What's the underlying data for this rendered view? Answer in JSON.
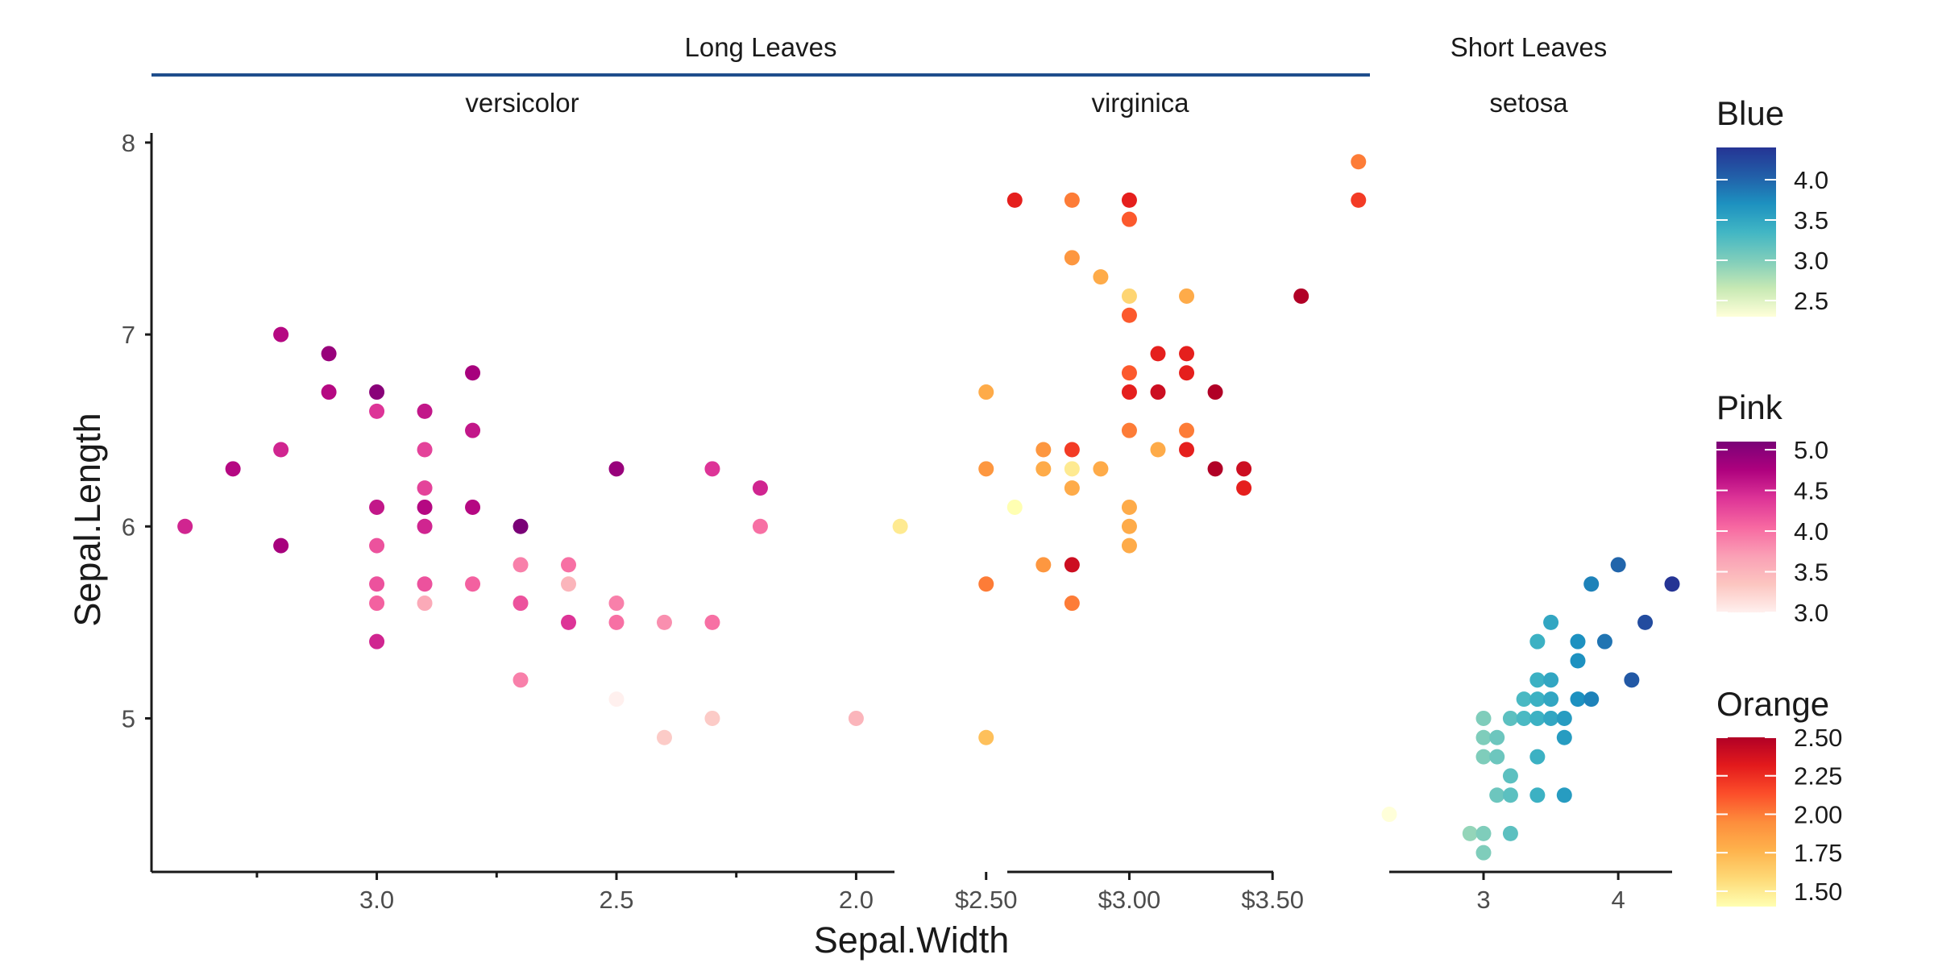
{
  "chart_data": {
    "type": "scatter",
    "xlabel": "Sepal.Width",
    "ylabel": "Sepal.Length",
    "ylim": [
      4.2,
      8.05
    ],
    "y_ticks": [
      "5",
      "6",
      "7",
      "8"
    ],
    "groups": [
      {
        "label": "Long Leaves",
        "rule_color": "#1f4e8c"
      },
      {
        "label": "Short Leaves"
      }
    ],
    "panels": [
      {
        "name": "versicolor",
        "xlim": [
          3.47,
          1.92
        ],
        "x_ticks": [
          {
            "v": 3.0,
            "label": "3.0"
          },
          {
            "v": 2.5,
            "label": "2.5"
          },
          {
            "v": 2.0,
            "label": "2.0"
          }
        ],
        "x_minor_ticks": [
          3.25,
          2.75,
          2.25
        ],
        "color_scale": "Pink",
        "points": [
          {
            "x": 3.4,
            "y": 6.0,
            "c": 4.5
          },
          {
            "x": 3.3,
            "y": 6.3,
            "c": 4.7
          },
          {
            "x": 3.2,
            "y": 7.0,
            "c": 4.7
          },
          {
            "x": 3.2,
            "y": 6.4,
            "c": 4.5
          },
          {
            "x": 3.2,
            "y": 5.9,
            "c": 4.8
          },
          {
            "x": 3.1,
            "y": 6.9,
            "c": 4.9
          },
          {
            "x": 3.1,
            "y": 6.7,
            "c": 4.7
          },
          {
            "x": 3.0,
            "y": 6.7,
            "c": 5.0
          },
          {
            "x": 3.0,
            "y": 6.6,
            "c": 4.4
          },
          {
            "x": 3.0,
            "y": 6.1,
            "c": 4.6
          },
          {
            "x": 3.0,
            "y": 5.9,
            "c": 4.2
          },
          {
            "x": 3.0,
            "y": 5.7,
            "c": 4.2
          },
          {
            "x": 3.0,
            "y": 5.6,
            "c": 4.1
          },
          {
            "x": 3.0,
            "y": 5.4,
            "c": 4.5
          },
          {
            "x": 2.9,
            "y": 6.6,
            "c": 4.6
          },
          {
            "x": 2.9,
            "y": 6.4,
            "c": 4.3
          },
          {
            "x": 2.9,
            "y": 6.2,
            "c": 4.3
          },
          {
            "x": 2.9,
            "y": 6.1,
            "c": 4.7
          },
          {
            "x": 2.9,
            "y": 6.0,
            "c": 4.5
          },
          {
            "x": 2.9,
            "y": 5.7,
            "c": 4.2
          },
          {
            "x": 2.9,
            "y": 5.6,
            "c": 3.6
          },
          {
            "x": 2.8,
            "y": 6.8,
            "c": 4.8
          },
          {
            "x": 2.8,
            "y": 6.5,
            "c": 4.6
          },
          {
            "x": 2.8,
            "y": 6.1,
            "c": 4.7
          },
          {
            "x": 2.8,
            "y": 5.7,
            "c": 4.1
          },
          {
            "x": 2.7,
            "y": 6.0,
            "c": 5.1
          },
          {
            "x": 2.7,
            "y": 5.8,
            "c": 3.9
          },
          {
            "x": 2.7,
            "y": 5.6,
            "c": 4.2
          },
          {
            "x": 2.7,
            "y": 5.2,
            "c": 3.9
          },
          {
            "x": 2.6,
            "y": 5.8,
            "c": 4.0
          },
          {
            "x": 2.6,
            "y": 5.7,
            "c": 3.5
          },
          {
            "x": 2.6,
            "y": 5.5,
            "c": 4.4
          },
          {
            "x": 2.5,
            "y": 6.3,
            "c": 4.9
          },
          {
            "x": 2.5,
            "y": 5.6,
            "c": 3.9
          },
          {
            "x": 2.5,
            "y": 5.5,
            "c": 4.0
          },
          {
            "x": 2.5,
            "y": 5.1,
            "c": 3.0
          },
          {
            "x": 2.4,
            "y": 5.5,
            "c": 3.8
          },
          {
            "x": 2.4,
            "y": 4.9,
            "c": 3.3
          },
          {
            "x": 2.3,
            "y": 6.3,
            "c": 4.4
          },
          {
            "x": 2.3,
            "y": 5.5,
            "c": 4.0
          },
          {
            "x": 2.3,
            "y": 5.0,
            "c": 3.3
          },
          {
            "x": 2.2,
            "y": 6.2,
            "c": 4.5
          },
          {
            "x": 2.2,
            "y": 6.0,
            "c": 4.0
          },
          {
            "x": 2.0,
            "y": 5.0,
            "c": 3.5
          }
        ]
      },
      {
        "name": "virginica",
        "xlim": [
          2.18,
          3.84
        ],
        "x_ticks": [
          {
            "v": 2.5,
            "label": "$2.50"
          },
          {
            "v": 3.0,
            "label": "$3.00"
          },
          {
            "v": 3.5,
            "label": "$3.50"
          }
        ],
        "x_minor_ticks": [],
        "color_scale": "Orange",
        "points": [
          {
            "x": 2.2,
            "y": 6.0,
            "c": 1.5
          },
          {
            "x": 2.5,
            "y": 6.7,
            "c": 1.8
          },
          {
            "x": 2.5,
            "y": 6.3,
            "c": 1.9
          },
          {
            "x": 2.5,
            "y": 5.7,
            "c": 2.0
          },
          {
            "x": 2.5,
            "y": 4.9,
            "c": 1.7
          },
          {
            "x": 2.6,
            "y": 7.7,
            "c": 2.3
          },
          {
            "x": 2.6,
            "y": 6.1,
            "c": 1.4
          },
          {
            "x": 2.7,
            "y": 6.4,
            "c": 1.9
          },
          {
            "x": 2.7,
            "y": 6.3,
            "c": 1.8
          },
          {
            "x": 2.7,
            "y": 5.8,
            "c": 1.9
          },
          {
            "x": 2.8,
            "y": 7.7,
            "c": 2.0
          },
          {
            "x": 2.8,
            "y": 7.4,
            "c": 1.9
          },
          {
            "x": 2.8,
            "y": 6.4,
            "c": 2.2
          },
          {
            "x": 2.8,
            "y": 6.3,
            "c": 1.5
          },
          {
            "x": 2.8,
            "y": 6.2,
            "c": 1.8
          },
          {
            "x": 2.8,
            "y": 5.8,
            "c": 2.4
          },
          {
            "x": 2.8,
            "y": 5.6,
            "c": 2.0
          },
          {
            "x": 2.9,
            "y": 7.3,
            "c": 1.8
          },
          {
            "x": 2.9,
            "y": 6.3,
            "c": 1.8
          },
          {
            "x": 3.0,
            "y": 7.7,
            "c": 2.3
          },
          {
            "x": 3.0,
            "y": 7.6,
            "c": 2.1
          },
          {
            "x": 3.0,
            "y": 7.2,
            "c": 1.6
          },
          {
            "x": 3.0,
            "y": 7.1,
            "c": 2.1
          },
          {
            "x": 3.0,
            "y": 6.8,
            "c": 2.1
          },
          {
            "x": 3.0,
            "y": 6.7,
            "c": 2.3
          },
          {
            "x": 3.0,
            "y": 6.5,
            "c": 2.0
          },
          {
            "x": 3.0,
            "y": 6.1,
            "c": 1.8
          },
          {
            "x": 3.0,
            "y": 6.0,
            "c": 1.8
          },
          {
            "x": 3.0,
            "y": 5.9,
            "c": 1.8
          },
          {
            "x": 3.1,
            "y": 6.9,
            "c": 2.3
          },
          {
            "x": 3.1,
            "y": 6.7,
            "c": 2.4
          },
          {
            "x": 3.1,
            "y": 6.4,
            "c": 1.8
          },
          {
            "x": 3.2,
            "y": 7.2,
            "c": 1.8
          },
          {
            "x": 3.2,
            "y": 6.9,
            "c": 2.3
          },
          {
            "x": 3.2,
            "y": 6.8,
            "c": 2.3
          },
          {
            "x": 3.2,
            "y": 6.5,
            "c": 2.0
          },
          {
            "x": 3.2,
            "y": 6.4,
            "c": 2.3
          },
          {
            "x": 3.3,
            "y": 6.7,
            "c": 2.5
          },
          {
            "x": 3.3,
            "y": 6.3,
            "c": 2.5
          },
          {
            "x": 3.4,
            "y": 6.3,
            "c": 2.4
          },
          {
            "x": 3.4,
            "y": 6.2,
            "c": 2.3
          },
          {
            "x": 3.6,
            "y": 7.2,
            "c": 2.5
          },
          {
            "x": 3.8,
            "y": 7.9,
            "c": 2.0
          },
          {
            "x": 3.8,
            "y": 7.7,
            "c": 2.2
          }
        ]
      },
      {
        "name": "setosa",
        "xlim": [
          2.3,
          4.4
        ],
        "x_ticks": [
          {
            "v": 3,
            "label": "3"
          },
          {
            "v": 4,
            "label": "4"
          }
        ],
        "x_minor_ticks": [],
        "color_scale": "Blue",
        "points": [
          {
            "x": 2.3,
            "y": 4.5,
            "c": 2.3
          },
          {
            "x": 2.9,
            "y": 4.4,
            "c": 2.9
          },
          {
            "x": 3.0,
            "y": 5.0,
            "c": 3.0
          },
          {
            "x": 3.0,
            "y": 4.9,
            "c": 3.0
          },
          {
            "x": 3.0,
            "y": 4.8,
            "c": 3.0
          },
          {
            "x": 3.0,
            "y": 4.4,
            "c": 3.0
          },
          {
            "x": 3.0,
            "y": 4.3,
            "c": 3.0
          },
          {
            "x": 3.1,
            "y": 4.9,
            "c": 3.1
          },
          {
            "x": 3.1,
            "y": 4.8,
            "c": 3.1
          },
          {
            "x": 3.1,
            "y": 4.6,
            "c": 3.1
          },
          {
            "x": 3.2,
            "y": 5.0,
            "c": 3.2
          },
          {
            "x": 3.2,
            "y": 4.7,
            "c": 3.2
          },
          {
            "x": 3.2,
            "y": 4.6,
            "c": 3.2
          },
          {
            "x": 3.2,
            "y": 4.4,
            "c": 3.2
          },
          {
            "x": 3.3,
            "y": 5.1,
            "c": 3.3
          },
          {
            "x": 3.3,
            "y": 5.0,
            "c": 3.3
          },
          {
            "x": 3.4,
            "y": 5.4,
            "c": 3.4
          },
          {
            "x": 3.4,
            "y": 5.2,
            "c": 3.4
          },
          {
            "x": 3.4,
            "y": 5.1,
            "c": 3.4
          },
          {
            "x": 3.4,
            "y": 5.0,
            "c": 3.4
          },
          {
            "x": 3.4,
            "y": 4.8,
            "c": 3.4
          },
          {
            "x": 3.4,
            "y": 4.6,
            "c": 3.4
          },
          {
            "x": 3.5,
            "y": 5.5,
            "c": 3.5
          },
          {
            "x": 3.5,
            "y": 5.2,
            "c": 3.5
          },
          {
            "x": 3.5,
            "y": 5.1,
            "c": 3.5
          },
          {
            "x": 3.5,
            "y": 5.0,
            "c": 3.5
          },
          {
            "x": 3.6,
            "y": 5.0,
            "c": 3.6
          },
          {
            "x": 3.6,
            "y": 4.9,
            "c": 3.6
          },
          {
            "x": 3.6,
            "y": 4.6,
            "c": 3.6
          },
          {
            "x": 3.7,
            "y": 5.4,
            "c": 3.7
          },
          {
            "x": 3.7,
            "y": 5.3,
            "c": 3.7
          },
          {
            "x": 3.7,
            "y": 5.1,
            "c": 3.7
          },
          {
            "x": 3.8,
            "y": 5.7,
            "c": 3.8
          },
          {
            "x": 3.8,
            "y": 5.1,
            "c": 3.8
          },
          {
            "x": 3.9,
            "y": 5.4,
            "c": 3.9
          },
          {
            "x": 4.0,
            "y": 5.8,
            "c": 4.0
          },
          {
            "x": 4.1,
            "y": 5.2,
            "c": 4.1
          },
          {
            "x": 4.2,
            "y": 5.5,
            "c": 4.2
          },
          {
            "x": 4.4,
            "y": 5.7,
            "c": 4.4
          }
        ]
      }
    ],
    "legends": [
      {
        "title": "Blue",
        "min": 2.3,
        "max": 4.4,
        "ticks": [
          {
            "v": 2.5,
            "label": "2.5"
          },
          {
            "v": 3.0,
            "label": "3.0"
          },
          {
            "v": 3.5,
            "label": "3.5"
          },
          {
            "v": 4.0,
            "label": "4.0"
          }
        ],
        "colors": [
          "#ffffd9",
          "#c7e9b4",
          "#7fcdbb",
          "#41b6c4",
          "#1d91c0",
          "#225ea8",
          "#253494"
        ]
      },
      {
        "title": "Pink",
        "min": 3.0,
        "max": 5.1,
        "ticks": [
          {
            "v": 3.0,
            "label": "3.0"
          },
          {
            "v": 3.5,
            "label": "3.5"
          },
          {
            "v": 4.0,
            "label": "4.0"
          },
          {
            "v": 4.5,
            "label": "4.5"
          },
          {
            "v": 5.0,
            "label": "5.0"
          }
        ],
        "colors": [
          "#fff0ee",
          "#fcc5c0",
          "#fa9fb5",
          "#f768a1",
          "#dd3497",
          "#ae017e",
          "#7a0177"
        ]
      },
      {
        "title": "Orange",
        "min": 1.4,
        "max": 2.5,
        "ticks": [
          {
            "v": 1.5,
            "label": "1.50"
          },
          {
            "v": 1.75,
            "label": "1.75"
          },
          {
            "v": 2.0,
            "label": "2.00"
          },
          {
            "v": 2.25,
            "label": "2.25"
          },
          {
            "v": 2.5,
            "label": "2.50"
          }
        ],
        "colors": [
          "#ffffb2",
          "#fed976",
          "#feb24c",
          "#fd8d3c",
          "#fc4e2a",
          "#e31a1c",
          "#b10026"
        ]
      }
    ]
  }
}
